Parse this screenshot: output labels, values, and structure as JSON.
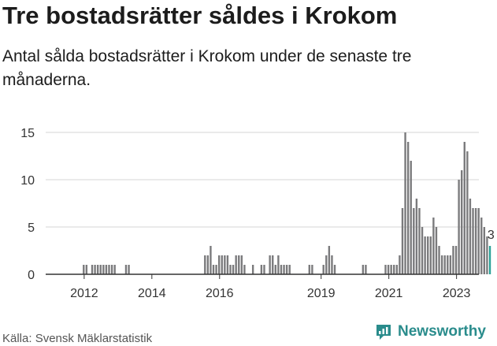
{
  "header": {
    "title": "Tre bostadsrätter såldes i Krokom",
    "subtitle": "Antal sålda bostadsrätter i Krokom under de senaste tre månaderna."
  },
  "footer": {
    "source": "Källa: Svensk Mäklarstatistik",
    "brand": "Newsworthy",
    "brand_icon": "newsworthy-logo-icon"
  },
  "colors": {
    "bar": "#7a7a7c",
    "highlight": "#2aa198",
    "grid": "#d4d4d4",
    "axis": "#333333",
    "brand": "#2a8c8c"
  },
  "chart_data": {
    "type": "bar",
    "title": "",
    "xlabel": "",
    "ylabel": "",
    "ylim": [
      0,
      16
    ],
    "yticks": [
      0,
      5,
      10,
      15
    ],
    "xtick_labels": [
      "2012",
      "2014",
      "2016",
      "2019",
      "2021",
      "2023"
    ],
    "x_start": "2011-06",
    "x_end": "2023-02",
    "grid": true,
    "highlight_label": "3",
    "series": [
      {
        "values": [
          0,
          0,
          0,
          0,
          0,
          0,
          0,
          1,
          1,
          0,
          1,
          1,
          1,
          1,
          1,
          1,
          1,
          1,
          1,
          0,
          0,
          0,
          1,
          1,
          0,
          0,
          0,
          0,
          0,
          0,
          0,
          0,
          0,
          0,
          0,
          0,
          0,
          0,
          0,
          0,
          0,
          0,
          0,
          0,
          0,
          0,
          0,
          0,
          0,
          0,
          2,
          2,
          3,
          1,
          1,
          2,
          2,
          2,
          2,
          1,
          1,
          2,
          2,
          2,
          1,
          0,
          0,
          1,
          0,
          0,
          1,
          1,
          0,
          2,
          2,
          1,
          2,
          1,
          1,
          1,
          1,
          0,
          0,
          0,
          0,
          0,
          0,
          1,
          1,
          0,
          0,
          0,
          1,
          2,
          3,
          2,
          1,
          0,
          0,
          0,
          0,
          0,
          0,
          0,
          0,
          0,
          1,
          1,
          0,
          0,
          0,
          0,
          0,
          0,
          1,
          1,
          1,
          1,
          1,
          2,
          7,
          15,
          14,
          12,
          7,
          8,
          7,
          5,
          4,
          4,
          4,
          6,
          5,
          3,
          2,
          2,
          2,
          2,
          3,
          3,
          10,
          11,
          14,
          13,
          8,
          7,
          7,
          7,
          6,
          5,
          4,
          3
        ]
      }
    ]
  }
}
